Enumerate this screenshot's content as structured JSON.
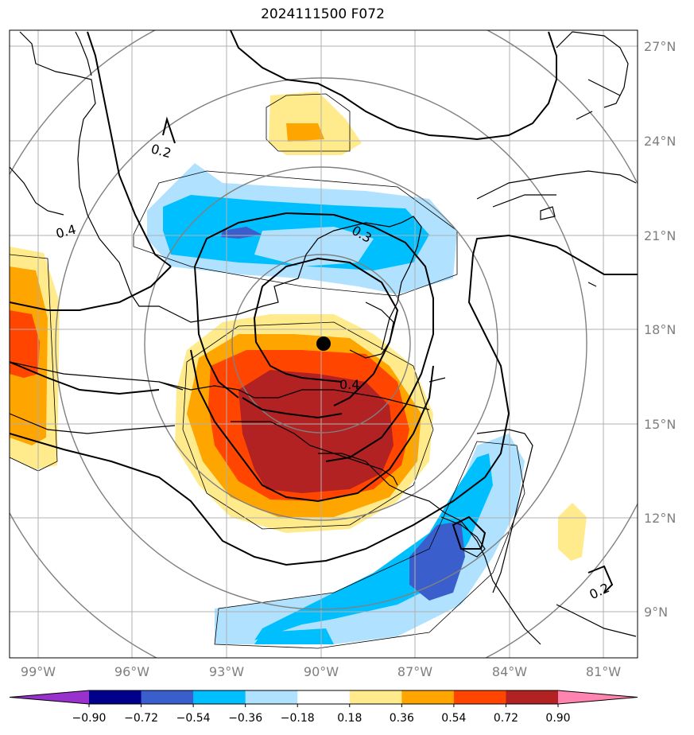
{
  "title": "2024111500 F072",
  "lat_labels": [
    "27°N",
    "24°N",
    "21°N",
    "18°N",
    "15°N",
    "12°N",
    "9°N"
  ],
  "lon_labels": [
    "99°W",
    "96°W",
    "93°W",
    "90°W",
    "87°W",
    "84°W",
    "81°W"
  ],
  "contour_labels": [
    "0.2",
    "0.4",
    "0.3",
    "0.4",
    "0.2"
  ],
  "colorbar": {
    "ticks": [
      "−0.90",
      "−0.72",
      "−0.54",
      "−0.36",
      "−0.18",
      "0.18",
      "0.36",
      "0.54",
      "0.72",
      "0.90"
    ],
    "colors": [
      "#9932cc",
      "#00008b",
      "#3a5fcd",
      "#00bfff",
      "#b0e2ff",
      "#ffffff",
      "#ffeb8c",
      "#ffa500",
      "#ff4500",
      "#b22222",
      "#ff85b0"
    ]
  },
  "center_marker": {
    "lat": 17.5,
    "lon": -89.9
  }
}
